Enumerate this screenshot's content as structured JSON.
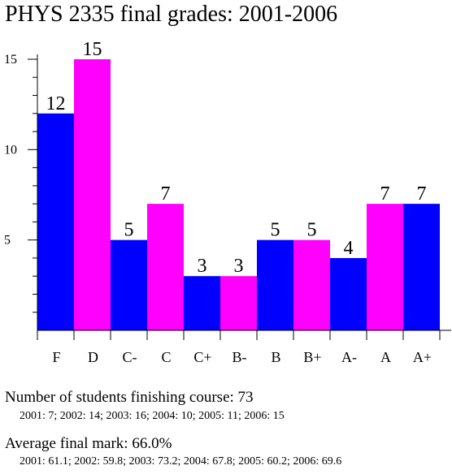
{
  "title": "PHYS 2335 final grades: 2001-2006",
  "chart_data": {
    "type": "bar",
    "title": "PHYS 2335 final grades: 2001-2006",
    "xlabel": "",
    "ylabel": "",
    "categories": [
      "F",
      "D",
      "C-",
      "C",
      "C+",
      "B-",
      "B",
      "B+",
      "A-",
      "A",
      "A+"
    ],
    "values": [
      12,
      15,
      5,
      7,
      3,
      3,
      5,
      5,
      4,
      7,
      7
    ],
    "ylim": [
      0,
      15
    ],
    "y_major_ticks": [
      5,
      10,
      15
    ],
    "y_minor_step": 1,
    "grid": false,
    "bar_colors": [
      "#0000ff",
      "#ff00ff"
    ]
  },
  "footer": {
    "students_label": "Number of students finishing course: 73",
    "students_detail": "2001: 7; 2002: 14; 2003: 16; 2004: 10; 2005: 11; 2006: 15",
    "average_label": "Average final mark: 66.0%",
    "average_detail": "2001: 61.1; 2002: 59.8; 2003: 73.2; 2004: 67.8; 2005: 60.2; 2006: 69.6"
  }
}
